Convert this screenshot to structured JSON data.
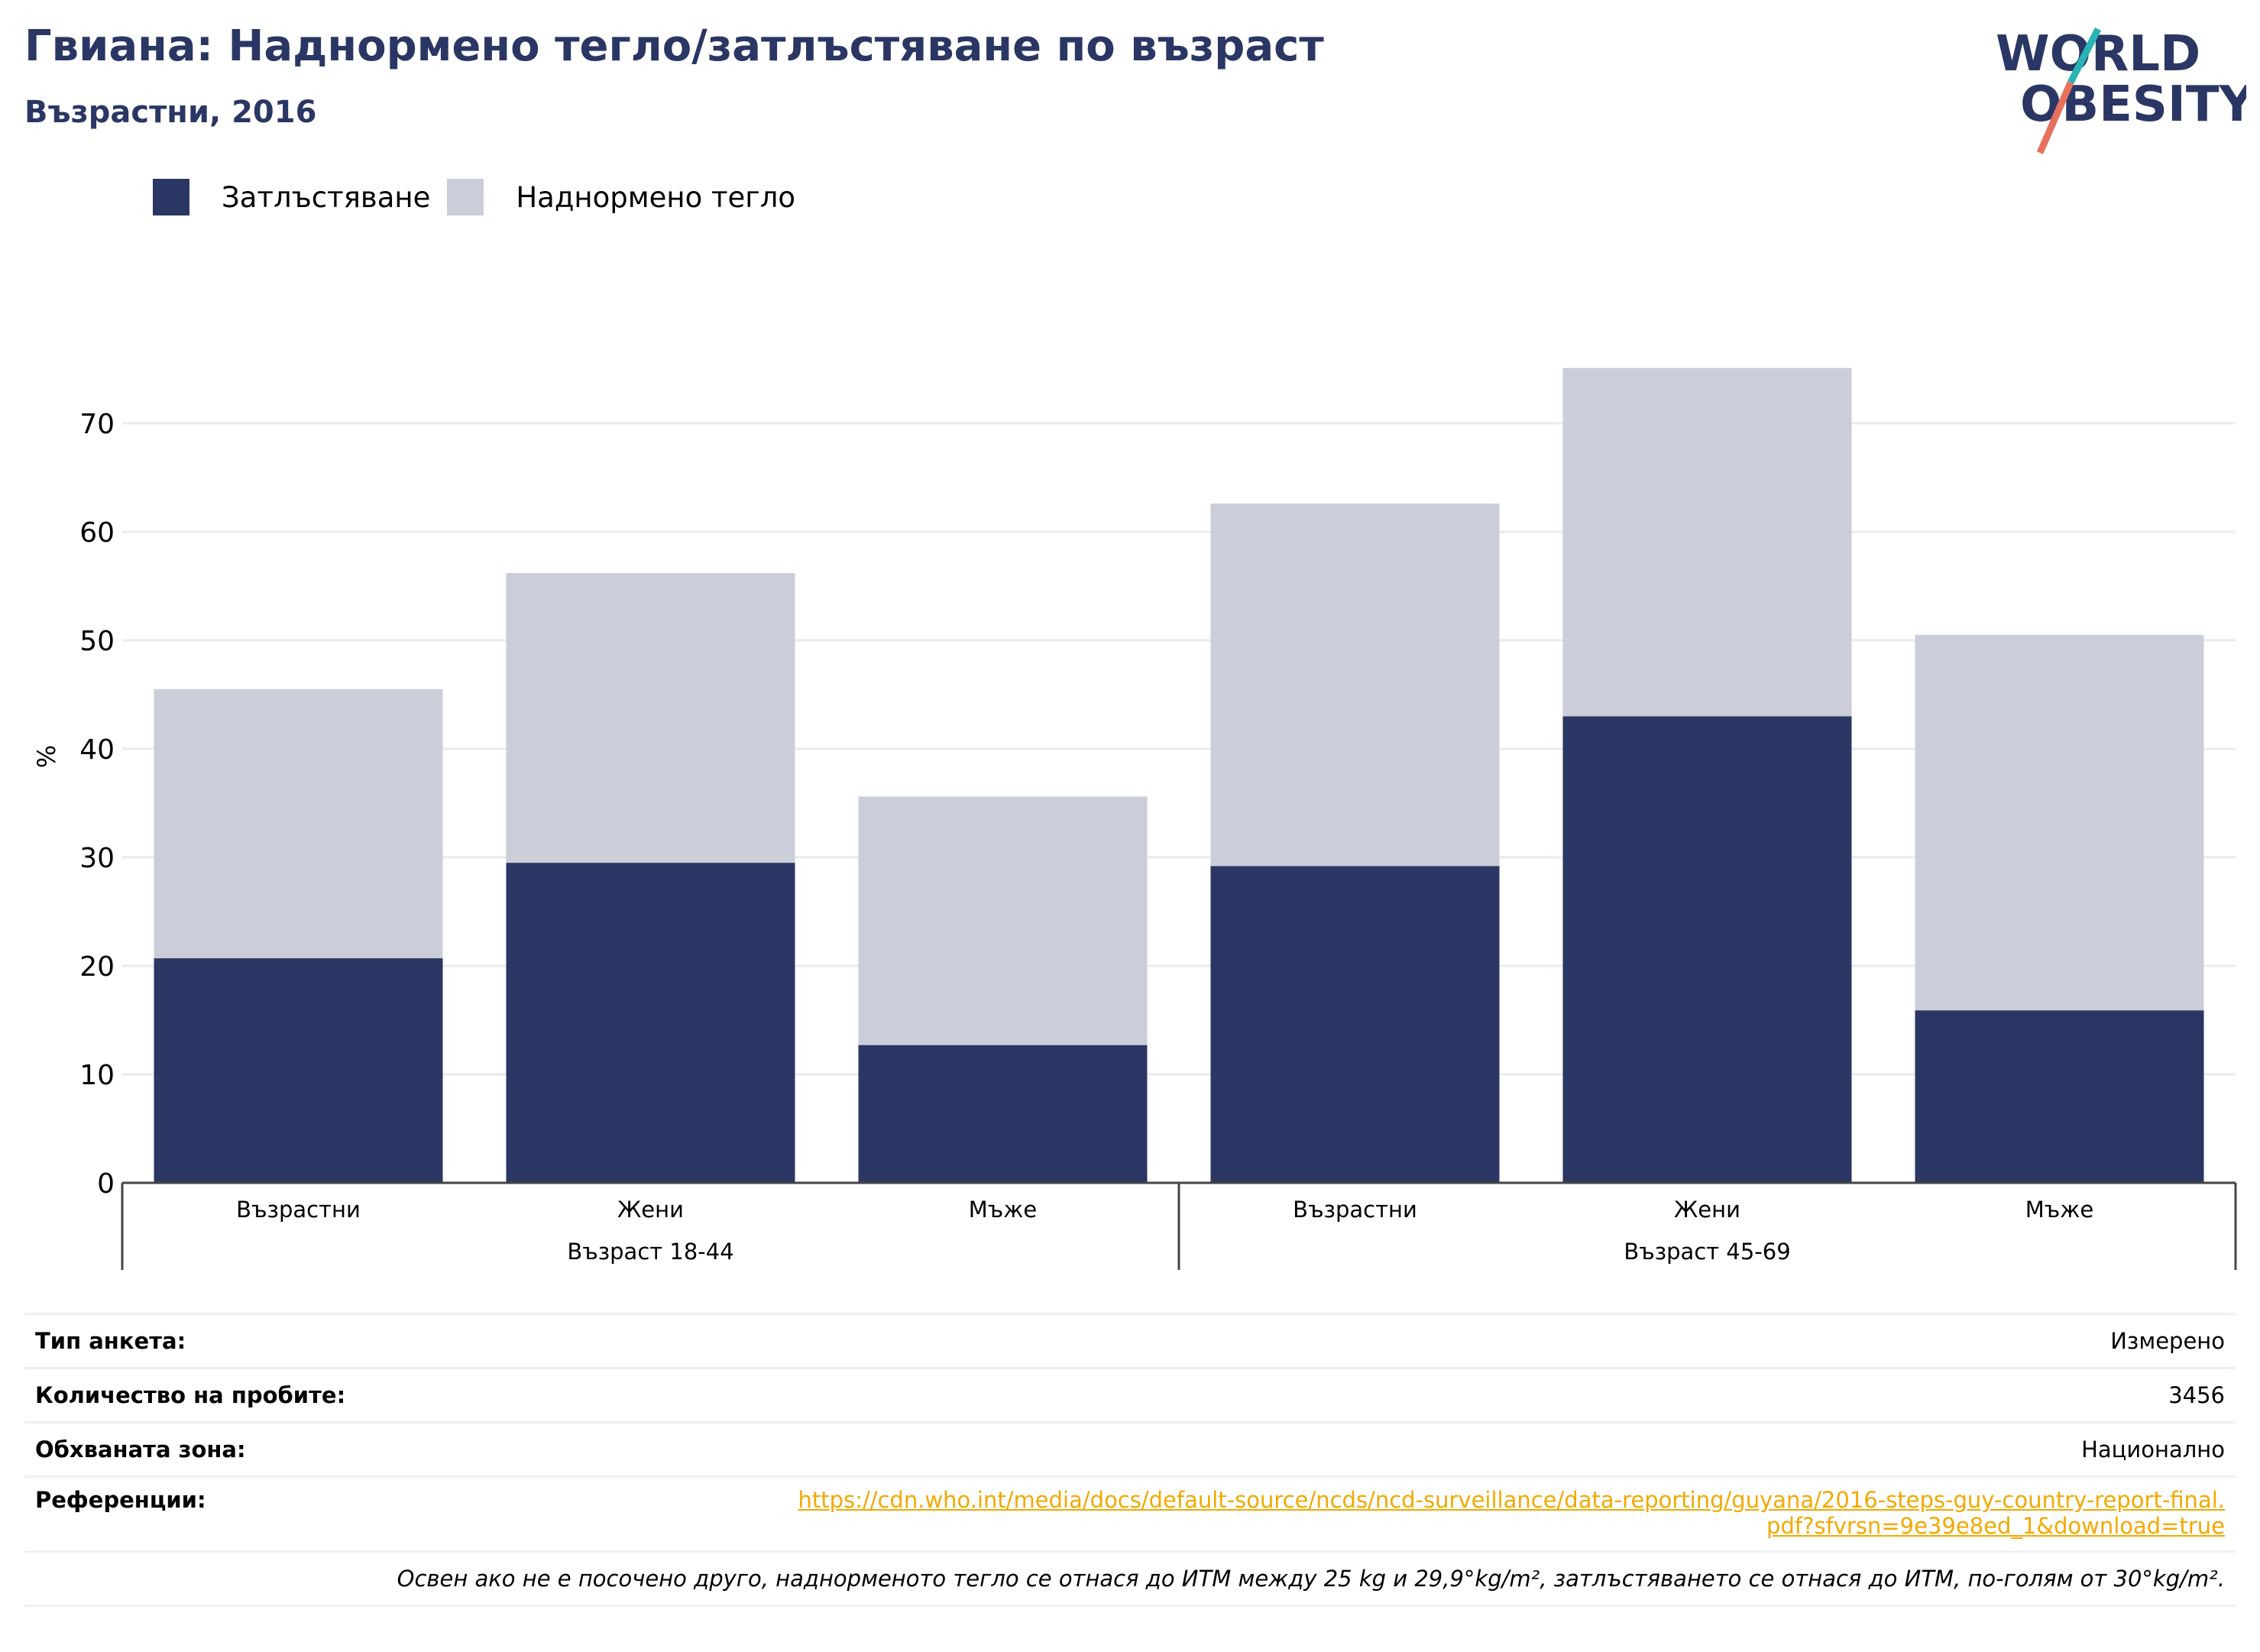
{
  "header": {
    "title": "Гвиана: Наднормено тегло/затлъстяване по възраст",
    "subtitle": "Възрастни, 2016"
  },
  "logo": {
    "line1": "WORLD",
    "line2": "OBESITY"
  },
  "legend": {
    "obesity": "Затлъстяване",
    "overweight": "Наднормено тегло"
  },
  "colors": {
    "obesity": "#2a3764",
    "overweight": "#cbcdd9",
    "grid": "#e9ebf0",
    "accent": "#f2a900",
    "logo_teal": "#2ab3b5",
    "logo_red": "#e8715e"
  },
  "chart_data": {
    "type": "bar",
    "stacked": true,
    "ylabel": "%",
    "ylim": [
      0,
      78
    ],
    "yticks": [
      0,
      10,
      20,
      30,
      40,
      50,
      60,
      70
    ],
    "grid": true,
    "legend_position": "top-left",
    "categories": [
      "Възрастни",
      "Жени",
      "Мъже",
      "Възрастни",
      "Жени",
      "Мъже"
    ],
    "groups": [
      {
        "label": "Възраст 18-44",
        "categories": [
          "Възрастни",
          "Жени",
          "Мъже"
        ]
      },
      {
        "label": "Възраст 45-69",
        "categories": [
          "Възрастни",
          "Жени",
          "Мъже"
        ]
      }
    ],
    "series": [
      {
        "name": "Затлъстяване",
        "values": [
          20.7,
          29.5,
          12.7,
          29.2,
          43.0,
          15.9
        ]
      },
      {
        "name": "Наднормено тегло",
        "values": [
          24.8,
          26.7,
          22.9,
          33.4,
          32.1,
          34.6
        ]
      }
    ]
  },
  "info": {
    "survey_type_label": "Тип анкета:",
    "survey_type_value": "Измерено",
    "sample_size_label": "Количество на пробите:",
    "sample_size_value": "3456",
    "coverage_label": "Обхваната зона:",
    "coverage_value": "Национално",
    "references_label": "Референции:",
    "references_value": "https://cdn.who.int/media/docs/default-source/ncds/ncd-surveillance/data-reporting/guyana/2016-steps-guy-country-report-final.pdf?sfvrsn=9e39e8ed_1&download=true",
    "note": "Освен ако не е посочено друго, наднорменото тегло се отнася до ИТМ между 25 kg и 29,9°kg/m², затлъстяването се отнася до ИТМ, по-голям от 30°kg/m²."
  }
}
